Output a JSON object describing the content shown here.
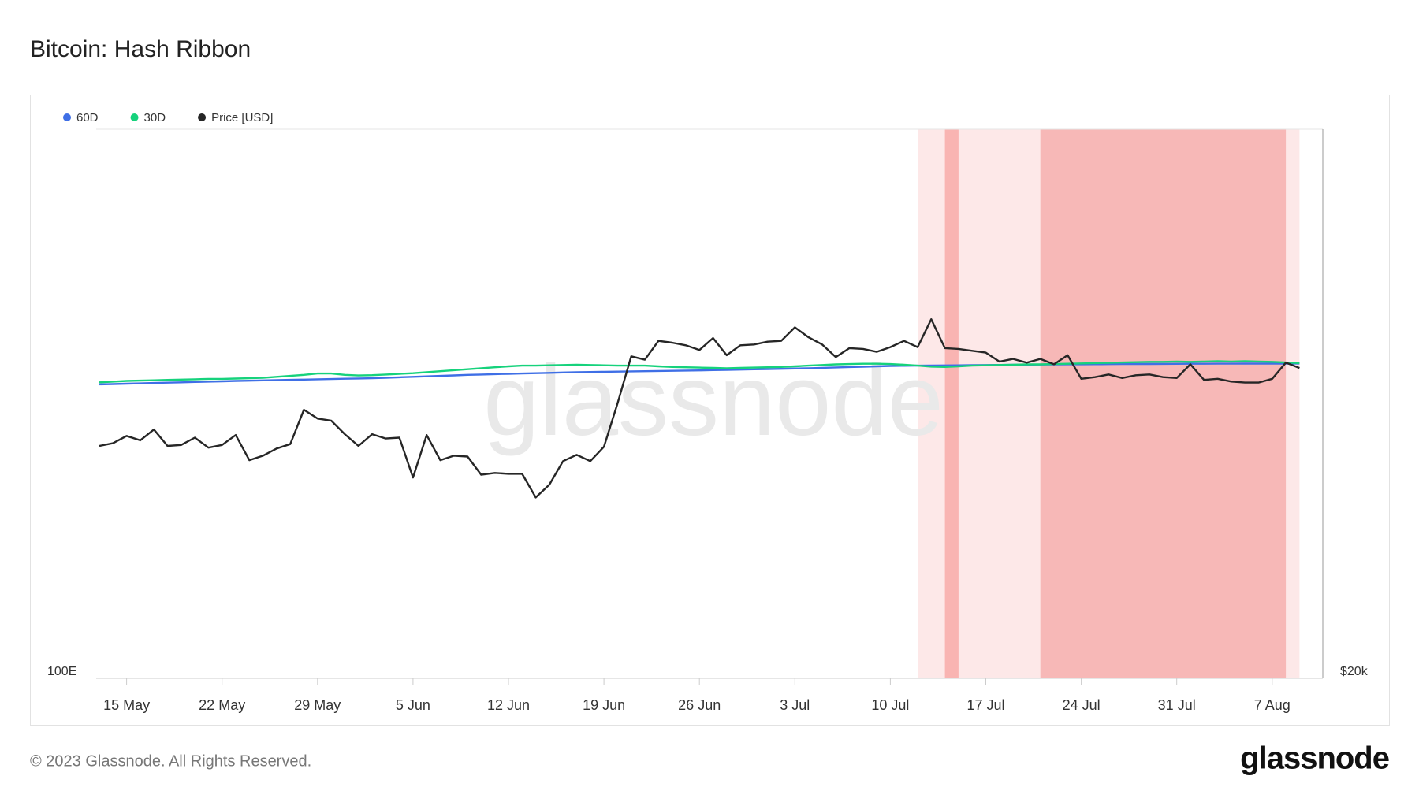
{
  "chart_data": {
    "type": "line",
    "title": "Bitcoin: Hash Ribbon",
    "watermark": "glassnode",
    "categories": [
      null,
      null,
      "15 May",
      null,
      null,
      null,
      null,
      null,
      null,
      "22 May",
      null,
      null,
      null,
      null,
      null,
      null,
      "29 May",
      null,
      null,
      null,
      null,
      null,
      null,
      "5 Jun",
      null,
      null,
      null,
      null,
      null,
      null,
      "12 Jun",
      null,
      null,
      null,
      null,
      null,
      null,
      "19 Jun",
      null,
      null,
      null,
      null,
      null,
      null,
      "26 Jun",
      null,
      null,
      null,
      null,
      null,
      null,
      "3 Jul",
      null,
      null,
      null,
      null,
      null,
      null,
      "10 Jul",
      null,
      null,
      null,
      null,
      null,
      null,
      "17 Jul",
      null,
      null,
      null,
      null,
      null,
      null,
      "24 Jul",
      null,
      null,
      null,
      null,
      null,
      null,
      "31 Jul",
      null,
      null,
      null,
      null,
      null,
      null,
      "7 Aug",
      null,
      null
    ],
    "series": [
      {
        "name": "60D",
        "color": "#3f6fe6",
        "axis": "y",
        "values": [
          343.0,
          343.5,
          344.0,
          344.5,
          345.0,
          345.5,
          346.0,
          346.5,
          347.0,
          347.5,
          348.0,
          348.4,
          348.8,
          349.2,
          349.6,
          350.0,
          350.4,
          350.8,
          351.2,
          351.6,
          352.0,
          352.7,
          353.4,
          354.1,
          354.8,
          355.5,
          356.2,
          357.0,
          357.5,
          358.0,
          358.5,
          359.0,
          359.5,
          360.0,
          360.5,
          361.0,
          361.3,
          361.6,
          361.9,
          362.2,
          362.5,
          362.8,
          363.1,
          363.4,
          363.7,
          364.1,
          364.5,
          364.9,
          365.3,
          365.7,
          366.1,
          366.5,
          367.0,
          367.6,
          368.2,
          368.8,
          369.4,
          370.0,
          370.6,
          370.8,
          371.0,
          371.2,
          371.4,
          371.6,
          371.8,
          372.0,
          372.2,
          372.4,
          372.6,
          372.8,
          373.0,
          373.1,
          373.2,
          373.3,
          373.4,
          373.5,
          373.6,
          373.7,
          373.8,
          373.9,
          374.0,
          374.0,
          374.1,
          374.1,
          374.2,
          374.2,
          374.3,
          374.3,
          374.4
        ]
      },
      {
        "name": "30D",
        "color": "#16d27c",
        "axis": "y",
        "values": [
          346,
          347,
          348,
          348.5,
          349,
          349.5,
          350,
          350.5,
          351,
          351,
          351.5,
          352,
          352.5,
          354,
          355.5,
          357,
          359,
          359,
          357,
          356,
          356.5,
          357.5,
          358.5,
          359.5,
          361,
          362.5,
          364,
          365.5,
          367,
          368.5,
          370,
          371,
          371,
          371.5,
          372,
          372.5,
          372,
          371.5,
          371,
          371,
          371,
          370,
          369,
          368.5,
          368,
          367.5,
          367,
          367.5,
          368,
          368.5,
          369,
          370,
          371,
          372,
          373,
          373.5,
          374,
          374,
          373.5,
          372.5,
          371,
          369.5,
          369,
          370,
          371,
          371.5,
          372,
          372.5,
          373,
          373,
          373.5,
          374,
          374.5,
          375,
          375.5,
          376,
          376.5,
          377,
          377,
          377.5,
          377,
          377.5,
          378,
          377.5,
          378,
          377.5,
          377,
          376,
          375
        ]
      },
      {
        "name": "Price [USD]",
        "color": "#262626",
        "axis": "y2",
        "values": [
          26820,
          26910,
          27160,
          27010,
          27380,
          26820,
          26850,
          27100,
          26760,
          26850,
          27190,
          26340,
          26490,
          26730,
          26880,
          28070,
          27760,
          27690,
          27220,
          26820,
          27220,
          27070,
          27100,
          25770,
          27190,
          26340,
          26490,
          26460,
          25860,
          25920,
          25890,
          25890,
          25130,
          25540,
          26310,
          26520,
          26310,
          26790,
          28300,
          30030,
          29900,
          30620,
          30550,
          30450,
          30270,
          30730,
          30070,
          30450,
          30480,
          30590,
          30620,
          31150,
          30760,
          30480,
          30000,
          30340,
          30310,
          30200,
          30380,
          30620,
          30380,
          31470,
          30340,
          30310,
          30240,
          30170,
          29830,
          29930,
          29790,
          29930,
          29730,
          30070,
          29190,
          29250,
          29350,
          29220,
          29320,
          29350,
          29250,
          29220,
          29730,
          29150,
          29190,
          29090,
          29050,
          29050,
          29190,
          29790,
          29590
        ]
      }
    ],
    "bands": [
      {
        "from": 60,
        "to": 88,
        "color": "#fde8e8"
      },
      {
        "from": 62,
        "to": 63,
        "color": "#f9b4b2"
      },
      {
        "from": 69,
        "to": 87,
        "color": "#f7b8b7"
      }
    ],
    "yscale": "log",
    "ylim": [
      100,
      1000
    ],
    "yticks": [
      {
        "value": 100,
        "label": "100E"
      }
    ],
    "y2scale": "log",
    "y2lim": [
      20000,
      40000
    ],
    "y2ticks": [
      {
        "value": 20000,
        "label": "$20k"
      }
    ],
    "legend": "top-left"
  },
  "footer": "© 2023 Glassnode. All Rights Reserved.",
  "logo": "glassnode"
}
